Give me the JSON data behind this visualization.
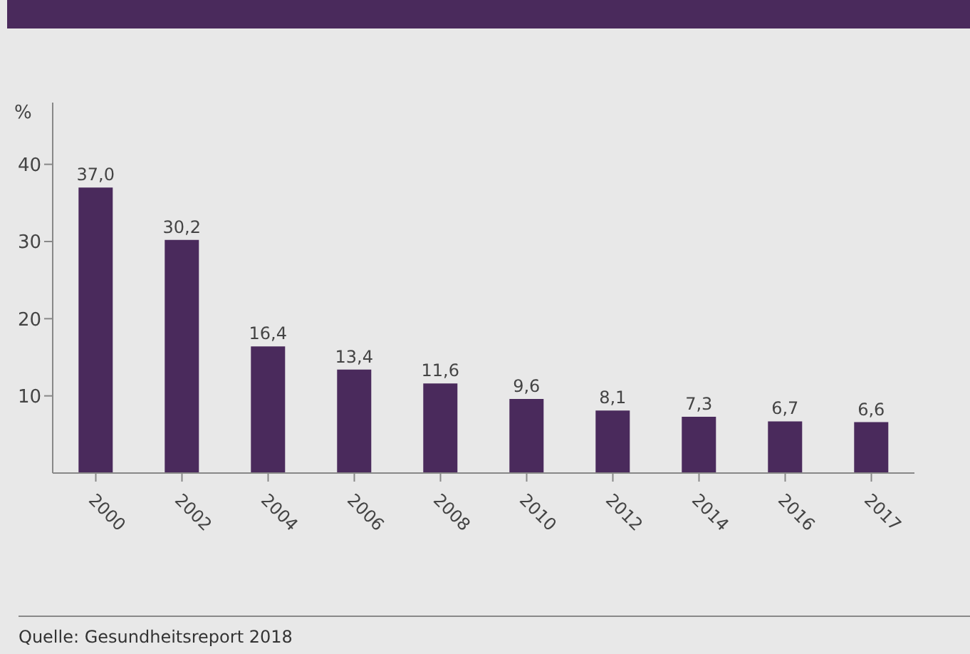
{
  "chart_data": {
    "type": "bar",
    "ylabel": "%",
    "categories": [
      "2000",
      "2002",
      "2004",
      "2006",
      "2008",
      "2010",
      "2012",
      "2014",
      "2016",
      "2017"
    ],
    "values": [
      37.0,
      30.2,
      16.4,
      13.4,
      11.6,
      9.6,
      8.1,
      7.3,
      6.7,
      6.6
    ],
    "value_labels": [
      "37,0",
      "30,2",
      "16,4",
      "13,4",
      "11,6",
      "9,6",
      "8,1",
      "7,3",
      "6,7",
      "6,6"
    ],
    "color": "#4a2a5c",
    "ylim": [
      0,
      48
    ],
    "yticks": [
      10,
      20,
      30,
      40
    ],
    "annotations": [
      "Quelle: Gesundheitsreport 2018"
    ]
  }
}
